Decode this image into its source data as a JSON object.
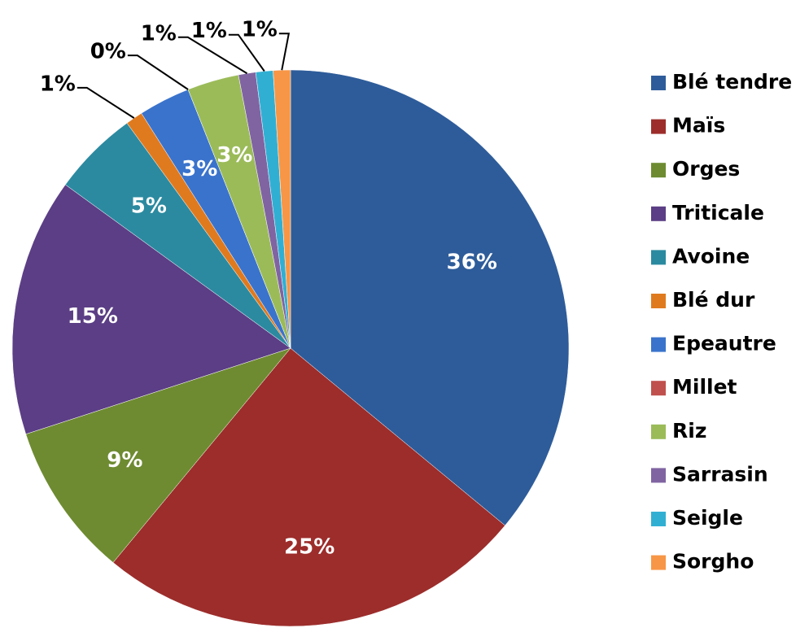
{
  "chart_data": {
    "type": "pie",
    "categories": [
      "Blé tendre",
      "Maïs",
      "Orges",
      "Triticale",
      "Avoine",
      "Blé dur",
      "Epeautre",
      "Millet",
      "Riz",
      "Sarrasin",
      "Seigle",
      "Sorgho"
    ],
    "values": [
      36,
      25,
      9,
      15,
      5,
      1,
      3,
      0,
      3,
      1,
      1,
      1
    ],
    "value_labels": [
      "36%",
      "25%",
      "9%",
      "15%",
      "5%",
      "1%",
      "3%",
      "0%",
      "3%",
      "1%",
      "1%",
      "1%"
    ],
    "colors": [
      "#2e5c9a",
      "#9c2d2b",
      "#6e8b31",
      "#5b3e85",
      "#2b8aa0",
      "#e07a1f",
      "#3a73cc",
      "#c0504d",
      "#9bbb59",
      "#8064a2",
      "#31afd3",
      "#f79646"
    ],
    "legend": "right"
  }
}
